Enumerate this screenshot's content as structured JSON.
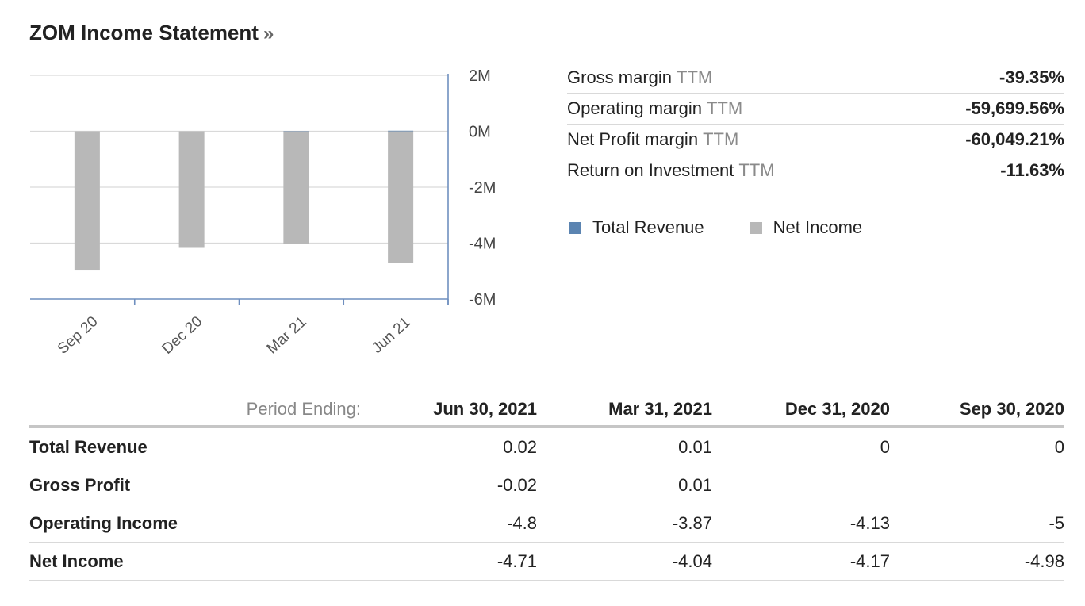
{
  "header": {
    "title": "ZOM Income Statement",
    "more_glyph": "»"
  },
  "chart_data": {
    "type": "bar",
    "categories": [
      "Sep 20",
      "Dec 20",
      "Mar 21",
      "Jun 21"
    ],
    "series": [
      {
        "name": "Total Revenue",
        "values": [
          0,
          0,
          0.01,
          0.02
        ],
        "color": "#5b84b1"
      },
      {
        "name": "Net Income",
        "values": [
          -4.98,
          -4.17,
          -4.04,
          -4.71
        ],
        "color": "#b8b8b8"
      }
    ],
    "y_ticks": [
      "2M",
      "0M",
      "-2M",
      "-4M",
      "-6M"
    ],
    "y_tick_values": [
      2,
      0,
      -2,
      -4,
      -6
    ],
    "ylim": [
      -6,
      2
    ],
    "y_axis_position": "right",
    "grid": true
  },
  "metrics": [
    {
      "label": "Gross margin",
      "suffix": "TTM",
      "value": "-39.35%"
    },
    {
      "label": "Operating margin",
      "suffix": "TTM",
      "value": "-59,699.56%"
    },
    {
      "label": "Net Profit margin",
      "suffix": "TTM",
      "value": "-60,049.21%"
    },
    {
      "label": "Return on Investment",
      "suffix": "TTM",
      "value": "-11.63%"
    }
  ],
  "legend": [
    {
      "label": "Total Revenue",
      "color": "#5b84b1"
    },
    {
      "label": "Net Income",
      "color": "#b8b8b8"
    }
  ],
  "table": {
    "period_label": "Period Ending:",
    "columns": [
      "Jun 30, 2021",
      "Mar 31, 2021",
      "Dec 31, 2020",
      "Sep 30, 2020"
    ],
    "rows": [
      {
        "label": "Total Revenue",
        "values": [
          "0.02",
          "0.01",
          "0",
          "0"
        ]
      },
      {
        "label": "Gross Profit",
        "values": [
          "-0.02",
          "0.01",
          "",
          ""
        ]
      },
      {
        "label": "Operating Income",
        "values": [
          "-4.8",
          "-3.87",
          "-4.13",
          "-5"
        ]
      },
      {
        "label": "Net Income",
        "values": [
          "-4.71",
          "-4.04",
          "-4.17",
          "-4.98"
        ]
      }
    ]
  }
}
